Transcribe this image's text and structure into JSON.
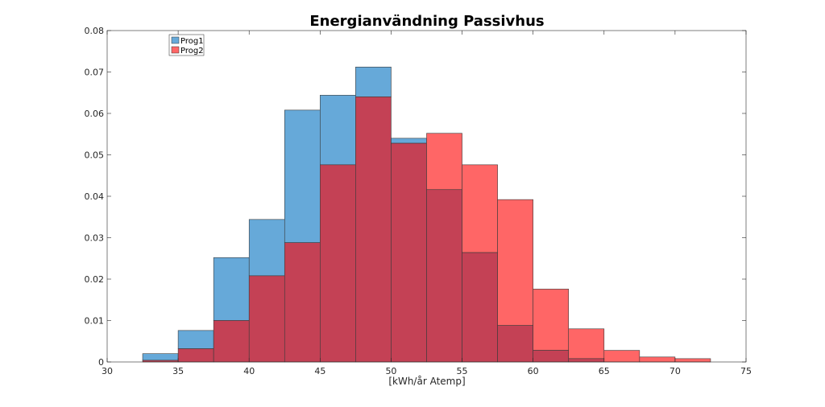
{
  "chart_data": {
    "type": "bar",
    "title": "Energianvändning Passivhus",
    "xlabel": "[kWh/år Atemp]",
    "ylabel": "",
    "xlim": [
      30,
      75
    ],
    "ylim": [
      0,
      0.08
    ],
    "xticks": [
      30,
      35,
      40,
      45,
      50,
      55,
      60,
      65,
      70,
      75
    ],
    "yticks": [
      0,
      0.01,
      0.02,
      0.03,
      0.04,
      0.05,
      0.06,
      0.07,
      0.08
    ],
    "ytick_labels": [
      "0",
      "0.01",
      "0.02",
      "0.03",
      "0.04",
      "0.05",
      "0.06",
      "0.07",
      "0.08"
    ],
    "bin_edges": [
      32.5,
      35,
      37.5,
      40,
      42.5,
      45,
      47.5,
      50,
      52.5,
      55,
      57.5,
      60,
      62.5,
      65,
      67.5,
      70,
      72.5
    ],
    "grid": false,
    "legend_position": "top-left",
    "series": [
      {
        "name": "Prog1",
        "color": "#66a9d9",
        "values": [
          0.002,
          0.0076,
          0.0252,
          0.0344,
          0.0608,
          0.0644,
          0.0712,
          0.054,
          0.0416,
          0.0264,
          0.0088,
          0.0028,
          0.0008,
          0,
          0,
          0
        ]
      },
      {
        "name": "Prog2",
        "color": "#ff6666",
        "values": [
          0.0004,
          0.0032,
          0.01,
          0.0208,
          0.0288,
          0.0476,
          0.064,
          0.0528,
          0.0552,
          0.0476,
          0.0392,
          0.0176,
          0.008,
          0.0028,
          0.0012,
          0.0008
        ]
      }
    ],
    "overlap_color": "#c44155"
  }
}
